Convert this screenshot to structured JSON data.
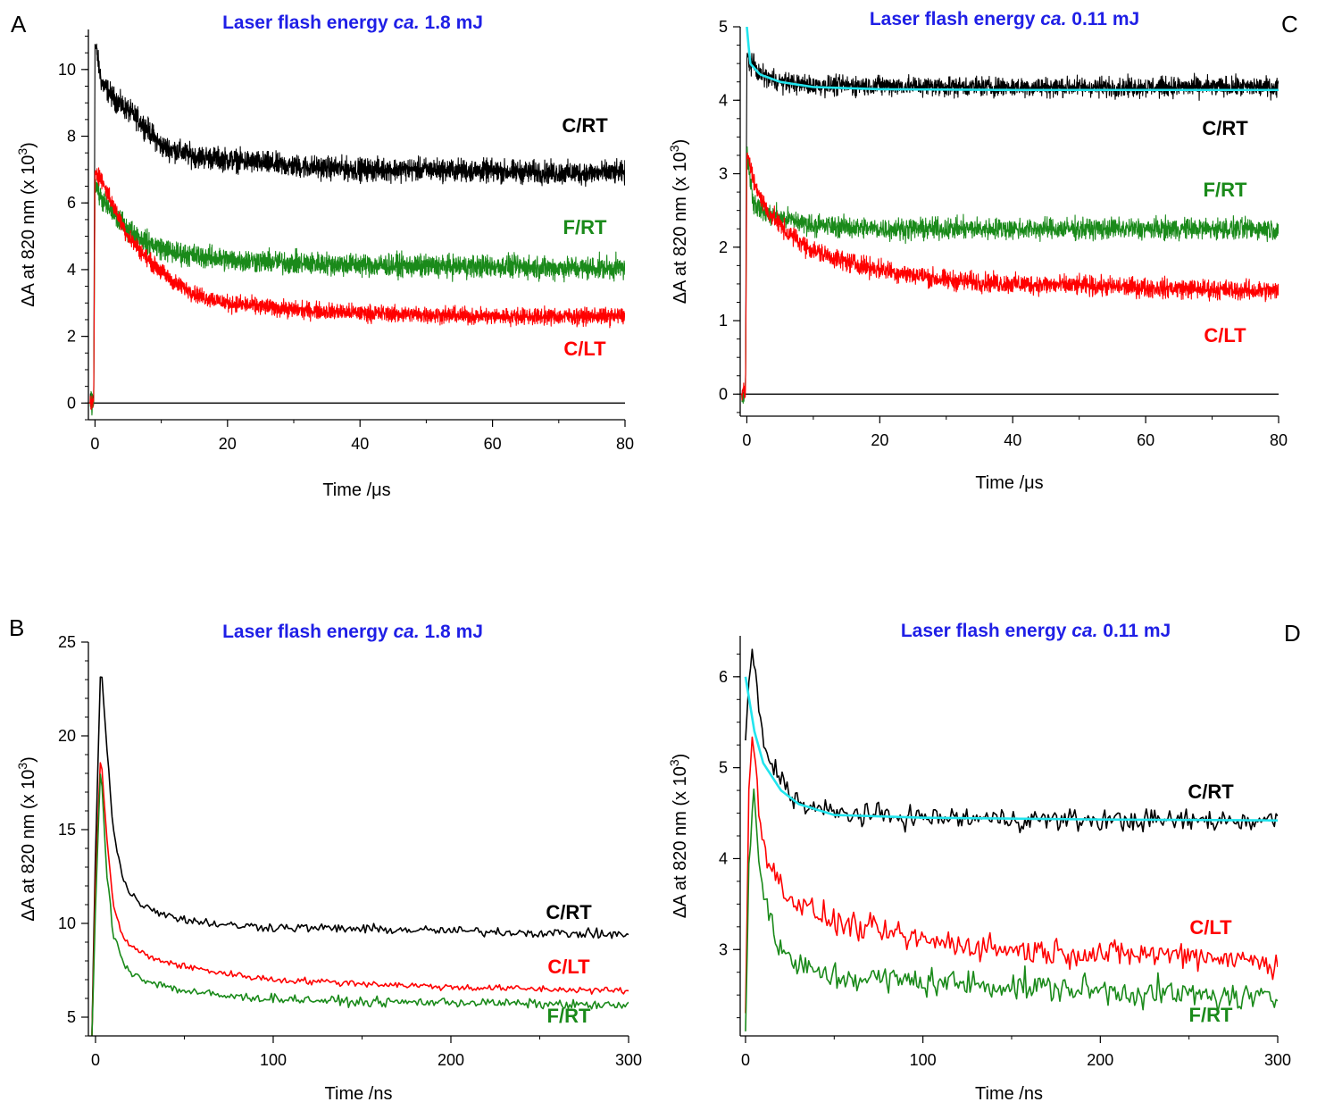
{
  "colors": {
    "black": "#000000",
    "red": "#ff0000",
    "green": "#1a8a1a",
    "cyan": "#22e5ee",
    "title_blue": "#1f1fe6"
  },
  "chart_data": [
    {
      "panel": "A",
      "type": "line",
      "title_prefix": "Laser flash energy ",
      "title_em": "ca.",
      "title_suffix": " 1.8 mJ",
      "xlabel": "Time /μs",
      "ylabel": "ΔA at 820 nm (x 10",
      "ylabel_sup": "3",
      "ylabel_close": ")",
      "xlim": [
        -1,
        80
      ],
      "ylim": [
        -0.5,
        11.2
      ],
      "xticks": [
        0,
        20,
        40,
        60,
        80
      ],
      "yticks": [
        0,
        2,
        4,
        6,
        8,
        10
      ],
      "baseline": 0,
      "series": [
        {
          "name": "C/RT",
          "color": "black",
          "noise": 0.3,
          "points": [
            [
              -1,
              0
            ],
            [
              -0.2,
              0
            ],
            [
              0,
              10.8
            ],
            [
              1,
              9.6
            ],
            [
              3,
              9.1
            ],
            [
              6,
              8.6
            ],
            [
              8,
              8.2
            ],
            [
              10,
              7.7
            ],
            [
              15,
              7.4
            ],
            [
              20,
              7.3
            ],
            [
              30,
              7.1
            ],
            [
              40,
              7.0
            ],
            [
              50,
              7.0
            ],
            [
              60,
              6.95
            ],
            [
              70,
              6.9
            ],
            [
              80,
              6.9
            ]
          ]
        },
        {
          "name": "F/RT",
          "color": "green",
          "noise": 0.3,
          "points": [
            [
              -1,
              0
            ],
            [
              -0.2,
              0
            ],
            [
              0,
              6.6
            ],
            [
              1,
              6.1
            ],
            [
              3,
              5.6
            ],
            [
              5,
              5.2
            ],
            [
              8,
              4.8
            ],
            [
              12,
              4.5
            ],
            [
              20,
              4.3
            ],
            [
              30,
              4.2
            ],
            [
              40,
              4.15
            ],
            [
              50,
              4.1
            ],
            [
              60,
              4.1
            ],
            [
              70,
              4.05
            ],
            [
              80,
              4.05
            ]
          ]
        },
        {
          "name": "C/LT",
          "color": "red",
          "noise": 0.22,
          "points": [
            [
              -1,
              0
            ],
            [
              -0.2,
              0
            ],
            [
              0,
              7.0
            ],
            [
              1,
              6.7
            ],
            [
              3,
              5.8
            ],
            [
              5,
              5.0
            ],
            [
              8,
              4.3
            ],
            [
              12,
              3.6
            ],
            [
              16,
              3.2
            ],
            [
              20,
              3.0
            ],
            [
              30,
              2.8
            ],
            [
              40,
              2.7
            ],
            [
              50,
              2.65
            ],
            [
              60,
              2.6
            ],
            [
              70,
              2.6
            ],
            [
              80,
              2.6
            ]
          ]
        }
      ]
    },
    {
      "panel": "C",
      "type": "line",
      "title_prefix": "Laser flash energy ",
      "title_em": "ca.",
      "title_suffix": " 0.11 mJ",
      "xlabel": "Time /μs",
      "ylabel": "ΔA at 820 nm (x 10",
      "ylabel_sup": "3",
      "ylabel_close": ")",
      "xlim": [
        -1,
        80
      ],
      "ylim": [
        -0.3,
        5.0
      ],
      "xticks": [
        0,
        20,
        40,
        60,
        80
      ],
      "yticks": [
        0,
        1,
        2,
        3,
        4,
        5
      ],
      "baseline": 0,
      "series": [
        {
          "name": "C/RT",
          "color": "black",
          "noise": 0.12,
          "points": [
            [
              -1,
              0
            ],
            [
              -0.2,
              0
            ],
            [
              0,
              4.6
            ],
            [
              2,
              4.35
            ],
            [
              5,
              4.25
            ],
            [
              10,
              4.2
            ],
            [
              20,
              4.2
            ],
            [
              40,
              4.18
            ],
            [
              60,
              4.18
            ],
            [
              80,
              4.18
            ]
          ]
        },
        {
          "name": "F/RT",
          "color": "green",
          "noise": 0.13,
          "points": [
            [
              -1,
              0
            ],
            [
              -0.2,
              0
            ],
            [
              0,
              3.3
            ],
            [
              1,
              2.6
            ],
            [
              3,
              2.45
            ],
            [
              10,
              2.3
            ],
            [
              20,
              2.25
            ],
            [
              40,
              2.25
            ],
            [
              60,
              2.25
            ],
            [
              80,
              2.25
            ]
          ]
        },
        {
          "name": "C/LT",
          "color": "red",
          "noise": 0.12,
          "points": [
            [
              -1,
              0
            ],
            [
              -0.2,
              0
            ],
            [
              0,
              3.3
            ],
            [
              1,
              2.9
            ],
            [
              3,
              2.5
            ],
            [
              6,
              2.2
            ],
            [
              10,
              1.95
            ],
            [
              15,
              1.8
            ],
            [
              20,
              1.7
            ],
            [
              30,
              1.55
            ],
            [
              40,
              1.5
            ],
            [
              60,
              1.45
            ],
            [
              80,
              1.4
            ]
          ]
        },
        {
          "name": "fit",
          "color": "cyan",
          "noise": 0,
          "points": [
            [
              0,
              5.0
            ],
            [
              0.5,
              4.5
            ],
            [
              2,
              4.35
            ],
            [
              5,
              4.25
            ],
            [
              10,
              4.18
            ],
            [
              20,
              4.15
            ],
            [
              40,
              4.14
            ],
            [
              80,
              4.14
            ]
          ]
        }
      ]
    },
    {
      "panel": "B",
      "type": "line",
      "title_prefix": "Laser flash energy ",
      "title_em": "ca.",
      "title_suffix": " 1.8 mJ",
      "xlabel": "Time /ns",
      "ylabel": "ΔA at 820 nm (x 10",
      "ylabel_sup": "3",
      "ylabel_close": ")",
      "xlim": [
        -4,
        300
      ],
      "ylim": [
        4,
        25
      ],
      "xticks": [
        0,
        100,
        200,
        300
      ],
      "yticks": [
        5,
        10,
        15,
        20,
        25
      ],
      "series": [
        {
          "name": "C/RT",
          "color": "black",
          "noise": 0.2,
          "points": [
            [
              -2,
              4
            ],
            [
              0,
              14
            ],
            [
              3,
              24
            ],
            [
              6,
              20
            ],
            [
              10,
              15
            ],
            [
              15,
              12.5
            ],
            [
              20,
              11.5
            ],
            [
              30,
              10.8
            ],
            [
              50,
              10.2
            ],
            [
              75,
              9.9
            ],
            [
              100,
              9.8
            ],
            [
              150,
              9.7
            ],
            [
              200,
              9.6
            ],
            [
              250,
              9.5
            ],
            [
              300,
              9.4
            ]
          ]
        },
        {
          "name": "C/LT",
          "color": "red",
          "noise": 0.15,
          "points": [
            [
              -2,
              4
            ],
            [
              0,
              12
            ],
            [
              3,
              19.3
            ],
            [
              6,
              15
            ],
            [
              10,
              11
            ],
            [
              15,
              9.3
            ],
            [
              20,
              8.8
            ],
            [
              30,
              8.2
            ],
            [
              50,
              7.7
            ],
            [
              75,
              7.3
            ],
            [
              100,
              7.0
            ],
            [
              150,
              6.8
            ],
            [
              200,
              6.6
            ],
            [
              250,
              6.5
            ],
            [
              300,
              6.4
            ]
          ]
        },
        {
          "name": "F/RT",
          "color": "green",
          "noise": 0.2,
          "points": [
            [
              -2,
              4
            ],
            [
              0,
              11
            ],
            [
              3,
              18.5
            ],
            [
              6,
              13
            ],
            [
              10,
              9.5
            ],
            [
              15,
              8
            ],
            [
              20,
              7.4
            ],
            [
              30,
              6.9
            ],
            [
              50,
              6.4
            ],
            [
              75,
              6.1
            ],
            [
              100,
              6.0
            ],
            [
              150,
              5.8
            ],
            [
              200,
              5.8
            ],
            [
              250,
              5.7
            ],
            [
              300,
              5.6
            ]
          ]
        }
      ]
    },
    {
      "panel": "D",
      "type": "line",
      "title_prefix": "Laser flash energy ",
      "title_em": "ca.",
      "title_suffix": " 0.11 mJ",
      "xlabel": "Time /ns",
      "ylabel": "ΔA at 820 nm (x 10",
      "ylabel_sup": "3",
      "ylabel_close": ")",
      "xlim": [
        -3,
        300
      ],
      "ylim": [
        2.05,
        6.45
      ],
      "xticks": [
        0,
        100,
        200,
        300
      ],
      "yticks": [
        3,
        4,
        5,
        6
      ],
      "series": [
        {
          "name": "C/RT",
          "color": "black",
          "noise": 0.1,
          "points": [
            [
              0,
              5.3
            ],
            [
              2,
              6.0
            ],
            [
              4,
              6.25
            ],
            [
              8,
              5.6
            ],
            [
              12,
              5.1
            ],
            [
              20,
              4.9
            ],
            [
              30,
              4.6
            ],
            [
              50,
              4.5
            ],
            [
              100,
              4.45
            ],
            [
              200,
              4.42
            ],
            [
              300,
              4.42
            ]
          ]
        },
        {
          "name": "C/LT",
          "color": "red",
          "noise": 0.12,
          "points": [
            [
              0,
              2.3
            ],
            [
              2,
              4.9
            ],
            [
              4,
              5.4
            ],
            [
              8,
              4.5
            ],
            [
              12,
              4.0
            ],
            [
              20,
              3.7
            ],
            [
              30,
              3.5
            ],
            [
              50,
              3.3
            ],
            [
              75,
              3.2
            ],
            [
              100,
              3.1
            ],
            [
              150,
              3.0
            ],
            [
              200,
              2.95
            ],
            [
              250,
              2.95
            ],
            [
              300,
              2.85
            ]
          ]
        },
        {
          "name": "F/RT",
          "color": "green",
          "noise": 0.13,
          "points": [
            [
              0,
              2.1
            ],
            [
              2,
              4.0
            ],
            [
              5,
              4.8
            ],
            [
              8,
              3.9
            ],
            [
              12,
              3.4
            ],
            [
              20,
              3.0
            ],
            [
              30,
              2.8
            ],
            [
              50,
              2.7
            ],
            [
              100,
              2.65
            ],
            [
              150,
              2.6
            ],
            [
              200,
              2.55
            ],
            [
              250,
              2.5
            ],
            [
              300,
              2.45
            ]
          ]
        },
        {
          "name": "fit",
          "color": "cyan",
          "noise": 0,
          "points": [
            [
              0,
              6.0
            ],
            [
              5,
              5.4
            ],
            [
              10,
              5.05
            ],
            [
              20,
              4.75
            ],
            [
              30,
              4.6
            ],
            [
              50,
              4.48
            ],
            [
              100,
              4.45
            ],
            [
              200,
              4.43
            ],
            [
              300,
              4.42
            ]
          ]
        }
      ]
    }
  ],
  "series_labels": [
    {
      "panel": "A",
      "text": "C/RT",
      "color": "black"
    },
    {
      "panel": "A",
      "text": "F/RT",
      "color": "green"
    },
    {
      "panel": "A",
      "text": "C/LT",
      "color": "red"
    },
    {
      "panel": "C",
      "text": "C/RT",
      "color": "black"
    },
    {
      "panel": "C",
      "text": "F/RT",
      "color": "green"
    },
    {
      "panel": "C",
      "text": "C/LT",
      "color": "red"
    },
    {
      "panel": "B",
      "text": "C/RT",
      "color": "black"
    },
    {
      "panel": "B",
      "text": "C/LT",
      "color": "red"
    },
    {
      "panel": "B",
      "text": "F/RT",
      "color": "green"
    },
    {
      "panel": "D",
      "text": "C/RT",
      "color": "black"
    },
    {
      "panel": "D",
      "text": "C/LT",
      "color": "red"
    },
    {
      "panel": "D",
      "text": "F/RT",
      "color": "green"
    }
  ]
}
